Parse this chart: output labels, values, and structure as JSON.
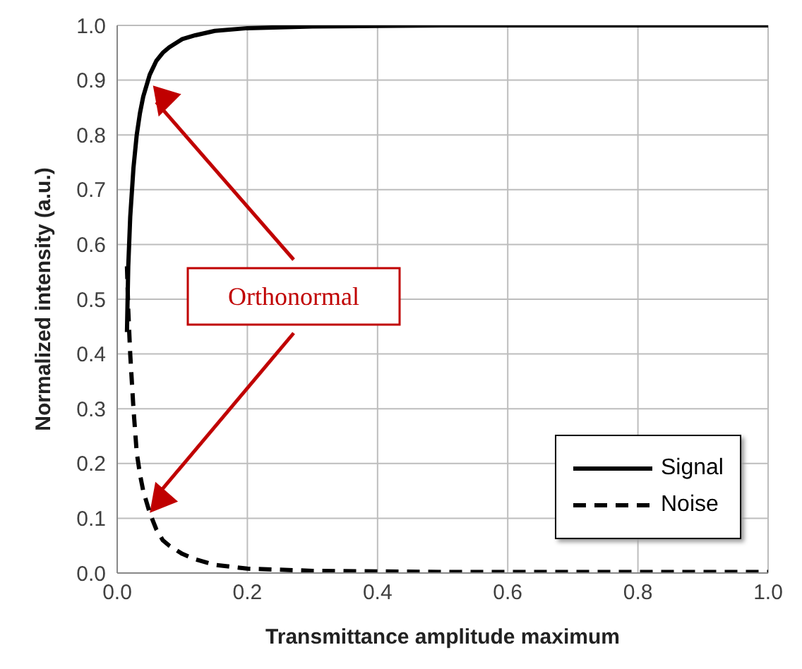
{
  "chart_data": {
    "type": "line",
    "xlabel": "Transmittance amplitude maximum",
    "ylabel": "Normalized intensity (a.u.)",
    "xlim": [
      0,
      1
    ],
    "xticks": [
      {
        "value": 0,
        "label": "0.0"
      },
      0.2,
      0.4,
      0.6,
      0.8,
      {
        "value": 1,
        "label": "1.0"
      }
    ],
    "ylim": [
      0,
      1
    ],
    "yticks": [
      {
        "value": 0,
        "label": "0.0"
      },
      0.1,
      0.2,
      0.3,
      0.4,
      0.5,
      0.6,
      0.7,
      0.8,
      0.9,
      {
        "value": 1,
        "label": "1.0"
      }
    ],
    "grid": true,
    "legend": "bottom right",
    "marker": "none",
    "annotations": [
      "Orthonormal"
    ],
    "series": [
      {
        "name": "Signal",
        "color": "#000000",
        "line_style": "solid",
        "x": [
          0.015,
          0.016,
          0.017,
          0.02,
          0.025,
          0.03,
          0.035,
          0.04,
          0.05,
          0.06,
          0.07,
          0.08,
          0.1,
          0.12,
          0.15,
          0.2,
          0.3,
          0.5,
          0.7,
          1.0
        ],
        "values": [
          0.44,
          0.5,
          0.56,
          0.65,
          0.74,
          0.8,
          0.84,
          0.87,
          0.91,
          0.935,
          0.95,
          0.96,
          0.975,
          0.982,
          0.99,
          0.995,
          0.998,
          1.0,
          1.0,
          1.0
        ]
      },
      {
        "name": "Noise",
        "color": "#000000",
        "line_style": "dashed",
        "x": [
          0.015,
          0.017,
          0.02,
          0.025,
          0.03,
          0.035,
          0.04,
          0.05,
          0.06,
          0.07,
          0.08,
          0.1,
          0.12,
          0.15,
          0.2,
          0.3,
          0.5,
          0.7,
          1.0
        ],
        "values": [
          0.56,
          0.48,
          0.4,
          0.3,
          0.22,
          0.18,
          0.15,
          0.11,
          0.08,
          0.06,
          0.05,
          0.035,
          0.025,
          0.015,
          0.008,
          0.004,
          0.002,
          0.002,
          0.002
        ]
      }
    ]
  }
}
